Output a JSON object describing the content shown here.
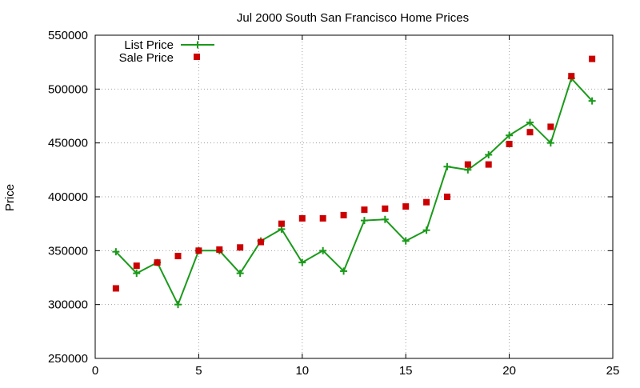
{
  "chart_data": {
    "type": "line",
    "title": "Jul 2000 South San Francisco Home Prices",
    "xlabel": "",
    "ylabel": "Price",
    "xlim": [
      0,
      25
    ],
    "ylim": [
      250000,
      550000
    ],
    "x_ticks": [
      0,
      5,
      10,
      15,
      20,
      25
    ],
    "y_ticks": [
      250000,
      300000,
      350000,
      400000,
      450000,
      500000,
      550000
    ],
    "x_tick_labels": [
      "0",
      "5",
      "10",
      "15",
      "20",
      "25"
    ],
    "y_tick_labels": [
      "250000",
      "300000",
      "350000",
      "400000",
      "450000",
      "500000",
      "550000"
    ],
    "grid": true,
    "legend_position": "top-left",
    "x": [
      1,
      2,
      3,
      4,
      5,
      6,
      7,
      8,
      9,
      10,
      11,
      12,
      13,
      14,
      15,
      16,
      17,
      18,
      19,
      20,
      21,
      22,
      23,
      24
    ],
    "series": [
      {
        "name": "List Price",
        "style": "line-with-plus-markers",
        "color": "#1a9a1a",
        "values": [
          349000,
          329000,
          339000,
          300000,
          350000,
          350000,
          329000,
          359000,
          370000,
          339000,
          350000,
          331000,
          378000,
          379000,
          359000,
          369000,
          428000,
          425000,
          439000,
          457000,
          469000,
          450000,
          510000,
          489000
        ]
      },
      {
        "name": "Sale Price",
        "style": "square-markers",
        "color": "#cc0000",
        "values": [
          315000,
          336000,
          339000,
          345000,
          350000,
          351000,
          353000,
          358000,
          375000,
          380000,
          380000,
          383000,
          388000,
          389000,
          391000,
          395000,
          400000,
          430000,
          430000,
          449000,
          460000,
          465000,
          512000,
          528000
        ]
      }
    ]
  }
}
